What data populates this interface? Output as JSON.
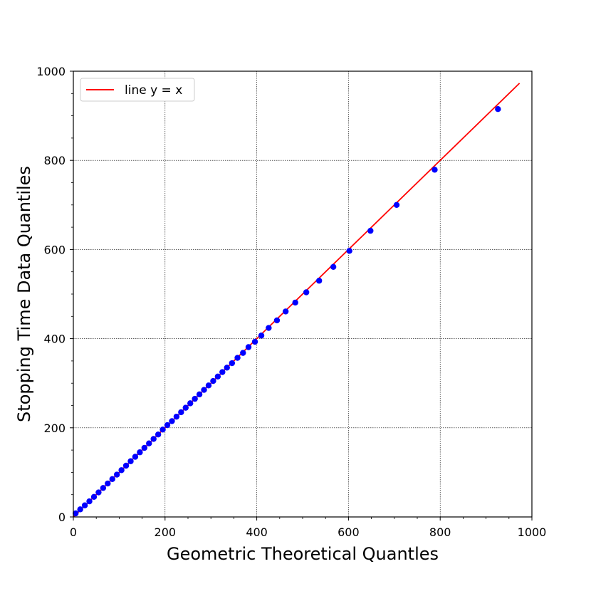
{
  "chart_data": {
    "type": "scatter",
    "xlabel": "Geometric Theoretical Quantles",
    "ylabel": "Stopping Time Data Quantiles",
    "xlim": [
      0,
      1000
    ],
    "ylim": [
      0,
      1000
    ],
    "xticks": [
      "0",
      "200",
      "400",
      "600",
      "800",
      "1000"
    ],
    "yticks": [
      "0",
      "200",
      "400",
      "600",
      "800",
      "1000"
    ],
    "grid": true,
    "legend": {
      "location": "top-left",
      "entries": [
        "line y = x"
      ]
    },
    "colors": {
      "points": "#0000ff",
      "line": "#ff0000"
    },
    "reference_line": {
      "name": "line y = x",
      "x": [
        0,
        973
      ],
      "y": [
        0,
        973
      ]
    },
    "series": [
      {
        "x": [
          5,
          15,
          25,
          35,
          45,
          55,
          65,
          75,
          85,
          95,
          105,
          115,
          125,
          135,
          145,
          155,
          165,
          175,
          185,
          195,
          205,
          215,
          225,
          235,
          245,
          255,
          265,
          275,
          285,
          295,
          305,
          315,
          325,
          335,
          346,
          358,
          370,
          382,
          396,
          410,
          426,
          444,
          463,
          484,
          508,
          536,
          567,
          602,
          648,
          705,
          788,
          926
        ],
        "y": [
          8,
          17,
          26,
          35,
          45,
          55,
          65,
          75,
          85,
          95,
          105,
          115,
          125,
          135,
          145,
          155,
          165,
          175,
          185,
          196,
          206,
          215,
          225,
          235,
          245,
          255,
          265,
          275,
          285,
          295,
          305,
          315,
          325,
          335,
          345,
          357,
          368,
          381,
          393,
          407,
          424,
          441,
          461,
          481,
          504,
          530,
          561,
          597,
          642,
          700,
          779,
          915
        ]
      }
    ]
  }
}
